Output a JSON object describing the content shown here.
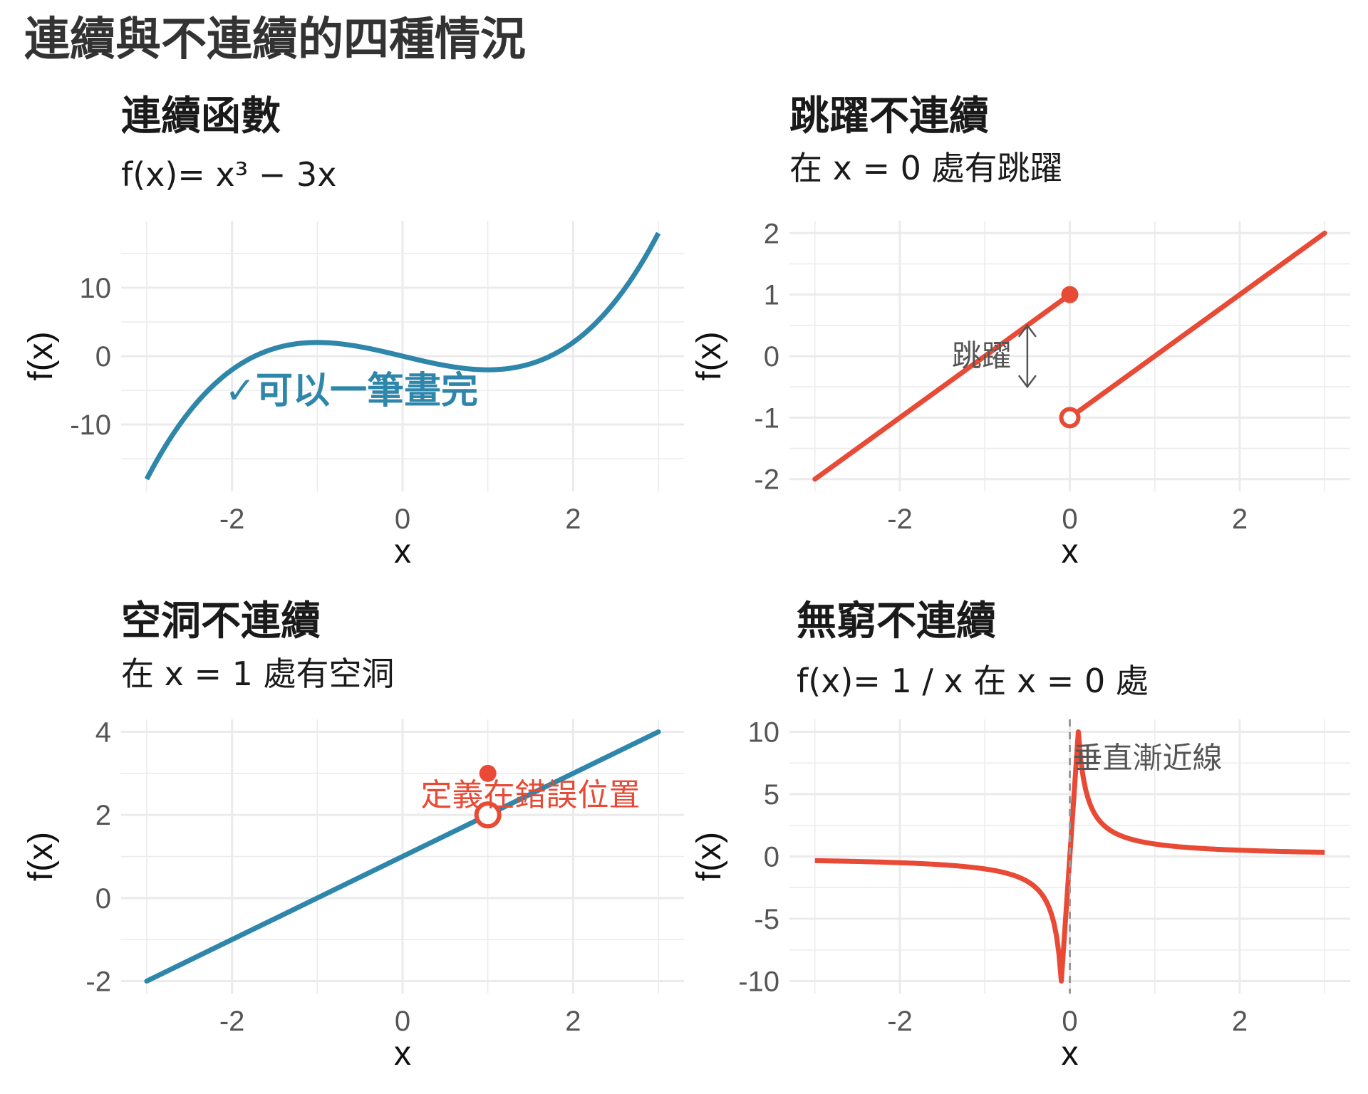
{
  "title": "連續與不連續的四種情況",
  "panels": [
    {
      "id": "p1",
      "title": "連續函數",
      "subtitle": "f(x)= x³ − 3x",
      "annotation": "✓可以一筆畫完"
    },
    {
      "id": "p2",
      "title": "跳躍不連續",
      "subtitle": "在 x = 0 處有跳躍",
      "annotation": "跳躍"
    },
    {
      "id": "p3",
      "title": "空洞不連續",
      "subtitle": "在 x = 1 處有空洞",
      "annotation": "定義在錯誤位置"
    },
    {
      "id": "p4",
      "title": "無窮不連續",
      "subtitle": "f(x)= 1 / x 在 x = 0 處",
      "annotation": "垂直漸近線"
    }
  ],
  "colors": {
    "blue": "#2E86AB",
    "red": "#E84A35",
    "grid": "#EBEBEB",
    "dashed": "#999999"
  },
  "chart_data": [
    {
      "type": "line",
      "title": "連續函數",
      "xlabel": "x",
      "ylabel": "f(x)",
      "function": "x^3 - 3x",
      "xlim": [
        -3,
        3
      ],
      "ylim": [
        -18,
        18
      ],
      "xticks": [
        -2,
        0,
        2
      ],
      "yticks": [
        -10,
        0,
        10
      ],
      "series": [
        {
          "x": [
            -3,
            -2.5,
            -2,
            -1.5,
            -1,
            -0.5,
            0,
            0.5,
            1,
            1.5,
            2,
            2.5,
            3
          ],
          "y": [
            -18,
            -8.125,
            -2,
            1.125,
            2,
            1.375,
            0,
            -1.375,
            -2,
            -1.125,
            2,
            8.125,
            18
          ]
        }
      ],
      "annotations": [
        {
          "text": "✓可以一筆畫完",
          "x": -0.6,
          "y": -5
        }
      ]
    },
    {
      "type": "line",
      "title": "跳躍不連續",
      "xlabel": "x",
      "ylabel": "f(x)",
      "xlim": [
        -3,
        3
      ],
      "ylim": [
        -2,
        2
      ],
      "xticks": [
        -2,
        0,
        2
      ],
      "yticks": [
        -2,
        -1,
        0,
        1,
        2
      ],
      "series": [
        {
          "x": [
            -3,
            0
          ],
          "y": [
            -2,
            1
          ]
        },
        {
          "x": [
            0,
            3
          ],
          "y": [
            -1,
            2
          ]
        }
      ],
      "points": [
        {
          "x": 0,
          "y": 1,
          "filled": true
        },
        {
          "x": 0,
          "y": -1,
          "filled": false
        }
      ],
      "annotations": [
        {
          "text": "跳躍",
          "x": -0.5,
          "y": 0
        }
      ]
    },
    {
      "type": "line",
      "title": "空洞不連續",
      "xlabel": "x",
      "ylabel": "f(x)",
      "xlim": [
        -3,
        3
      ],
      "ylim": [
        -2,
        4
      ],
      "xticks": [
        -2,
        0,
        2
      ],
      "yticks": [
        -2,
        0,
        2,
        4
      ],
      "series": [
        {
          "x": [
            -3,
            3
          ],
          "y": [
            -2,
            4
          ]
        }
      ],
      "points": [
        {
          "x": 1,
          "y": 3,
          "filled": true
        },
        {
          "x": 1,
          "y": 2,
          "filled": false
        }
      ],
      "annotations": [
        {
          "text": "定義在錯誤位置",
          "x": 1.5,
          "y": 2.5
        }
      ]
    },
    {
      "type": "line",
      "title": "無窮不連續",
      "xlabel": "x",
      "ylabel": "f(x)",
      "function": "1/x",
      "xlim": [
        -3,
        3
      ],
      "ylim": [
        -10,
        10
      ],
      "xticks": [
        -2,
        0,
        2
      ],
      "yticks": [
        -10,
        -5,
        0,
        5,
        10
      ],
      "series": [
        {
          "x": [
            -3,
            -2,
            -1,
            -0.5,
            -0.25,
            -0.1
          ],
          "y": [
            -0.333,
            -0.5,
            -1,
            -2,
            -4,
            -10
          ]
        },
        {
          "x": [
            0.1,
            0.25,
            0.5,
            1,
            2,
            3
          ],
          "y": [
            10,
            4,
            2,
            1,
            0.5,
            0.333
          ]
        }
      ],
      "vline": {
        "x": 0,
        "label": "垂直漸近線"
      }
    }
  ]
}
